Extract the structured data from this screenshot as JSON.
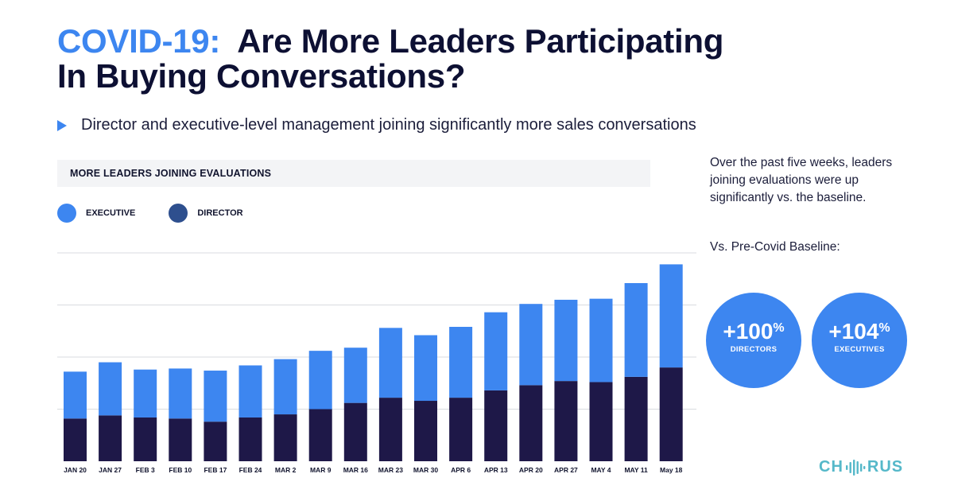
{
  "title": {
    "accent": "COVID-19:",
    "line1": "Are More Leaders Participating",
    "line2": "In Buying Conversations?"
  },
  "subtitle": "Director and executive-level management joining significantly more sales conversations",
  "chart_header": "MORE LEADERS JOINING EVALUATIONS",
  "side": {
    "text": "Over the past five weeks, leaders joining evaluations were up significantly vs. the baseline.",
    "baseline_label": "Vs. Pre-Covid Baseline:",
    "stats": [
      {
        "value": "+100",
        "suffix": "%",
        "label": "DIRECTORS"
      },
      {
        "value": "+104",
        "suffix": "%",
        "label": "EXECUTIVES"
      }
    ]
  },
  "logo": {
    "left": "CH",
    "right": "RUS"
  },
  "colors": {
    "executive": "#3d86f0",
    "director": "#1e1848",
    "accent": "#3d86f0",
    "grid": "#d9dbe0"
  },
  "chart_data": {
    "type": "bar",
    "stacked": true,
    "title": "MORE LEADERS JOINING EVALUATIONS",
    "xlabel": "",
    "ylabel": "",
    "ylim": [
      0,
      100
    ],
    "grid": true,
    "legend_position": "top-left",
    "categories": [
      "JAN 20",
      "JAN 27",
      "FEB 3",
      "FEB 10",
      "FEB 17",
      "FEB 24",
      "MAR 2",
      "MAR 9",
      "MAR 16",
      "MAR 23",
      "MAR 30",
      "APR 6",
      "APR 13",
      "APR 20",
      "APR 27",
      "MAY 4",
      "MAY 11",
      "May 18"
    ],
    "series": [
      {
        "name": "DIRECTOR",
        "values": [
          20.5,
          22,
          21,
          20.5,
          19,
          21,
          22.5,
          25,
          28,
          30.5,
          29,
          30.5,
          34,
          36.5,
          38.5,
          38,
          40.5,
          45
        ]
      },
      {
        "name": "EXECUTIVE",
        "values": [
          22.5,
          25.5,
          23,
          24,
          24.5,
          25,
          26.5,
          28,
          26.5,
          33.5,
          31.5,
          34,
          37.5,
          39,
          39,
          40,
          45,
          49.5
        ]
      }
    ]
  }
}
